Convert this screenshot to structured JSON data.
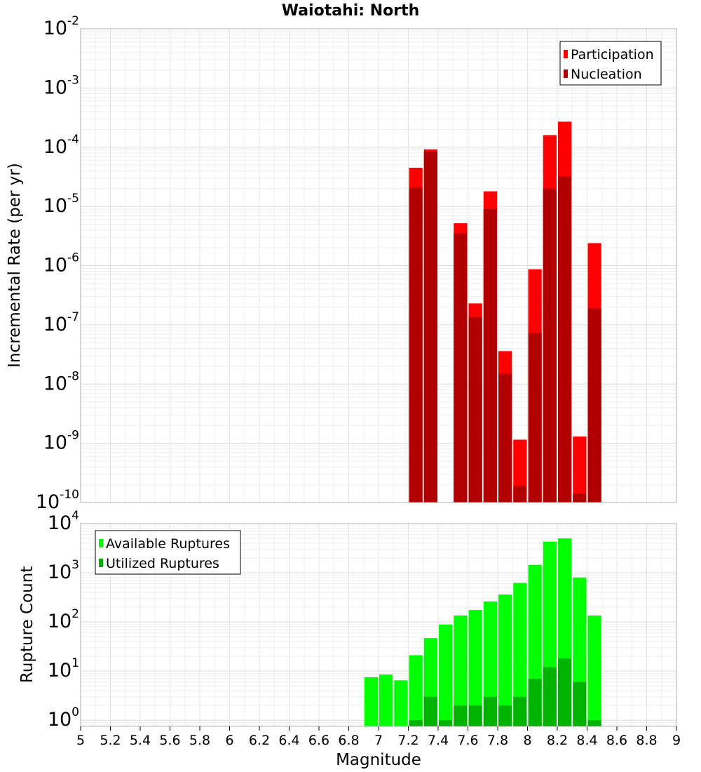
{
  "chart_data": [
    {
      "type": "bar",
      "title": "Waiotahi: North",
      "ylabel": "Incremental Rate (per yr)",
      "yscale": "log",
      "ylim": [
        1e-10,
        0.01
      ],
      "xlim": [
        5,
        9
      ],
      "grid": true,
      "legend_position": "top-right",
      "y_tick_exponents": [
        "-2",
        "-3",
        "-4",
        "-5",
        "-6",
        "-7",
        "-8",
        "-9",
        "-10"
      ],
      "series": [
        {
          "name": "Participation",
          "color": "#ff0000",
          "x": [
            7.25,
            7.35,
            7.55,
            7.65,
            7.75,
            7.85,
            7.95,
            8.05,
            8.15,
            8.25,
            8.35,
            8.45
          ],
          "values": [
            4.5e-05,
            9.2e-05,
            5.2e-06,
            2.3e-07,
            1.8e-05,
            3.6e-08,
            1.15e-09,
            8.7e-07,
            0.00016,
            0.00027,
            1.3e-09,
            2.4e-06
          ]
        },
        {
          "name": "Nucleation",
          "color": "#b20000",
          "x": [
            7.25,
            7.35,
            7.55,
            7.65,
            7.75,
            7.85,
            7.95,
            8.05,
            8.15,
            8.25,
            8.35,
            8.45
          ],
          "values": [
            2.1e-05,
            8.4e-05,
            3.5e-06,
            1.35e-07,
            9e-06,
            1.5e-08,
            1.9e-10,
            7.3e-08,
            2e-05,
            3.2e-05,
            1.4e-10,
            1.9e-07
          ]
        }
      ]
    },
    {
      "type": "bar",
      "xlabel": "Magnitude",
      "ylabel": "Rupture Count",
      "yscale": "log",
      "ylim": [
        0.75,
        10000
      ],
      "xlim": [
        5,
        9
      ],
      "grid": true,
      "legend_position": "top-left",
      "y_tick_exponents": [
        "4",
        "3",
        "2",
        "1",
        "0"
      ],
      "x_ticks": [
        "5",
        "5.2",
        "5.4",
        "5.6",
        "5.8",
        "6",
        "6.2",
        "6.4",
        "6.6",
        "6.8",
        "7",
        "7.2",
        "7.4",
        "7.6",
        "7.8",
        "8",
        "8.2",
        "8.4",
        "8.6",
        "8.8",
        "9"
      ],
      "series": [
        {
          "name": "Available Ruptures",
          "color": "#00ff00",
          "x": [
            6.95,
            7.05,
            7.15,
            7.25,
            7.35,
            7.45,
            7.55,
            7.65,
            7.75,
            7.85,
            7.95,
            8.05,
            8.15,
            8.25,
            8.35,
            8.45
          ],
          "values": [
            7.5,
            8.5,
            6.5,
            21,
            47,
            88,
            135,
            175,
            260,
            360,
            620,
            1450,
            4300,
            5000,
            800,
            135
          ]
        },
        {
          "name": "Utilized Ruptures",
          "color": "#00b200",
          "x": [
            7.25,
            7.35,
            7.45,
            7.55,
            7.65,
            7.75,
            7.85,
            7.95,
            8.05,
            8.15,
            8.25,
            8.35,
            8.45
          ],
          "values": [
            1,
            3,
            1,
            2,
            2,
            3,
            2,
            3,
            7,
            12,
            18,
            6,
            1
          ]
        }
      ]
    }
  ]
}
